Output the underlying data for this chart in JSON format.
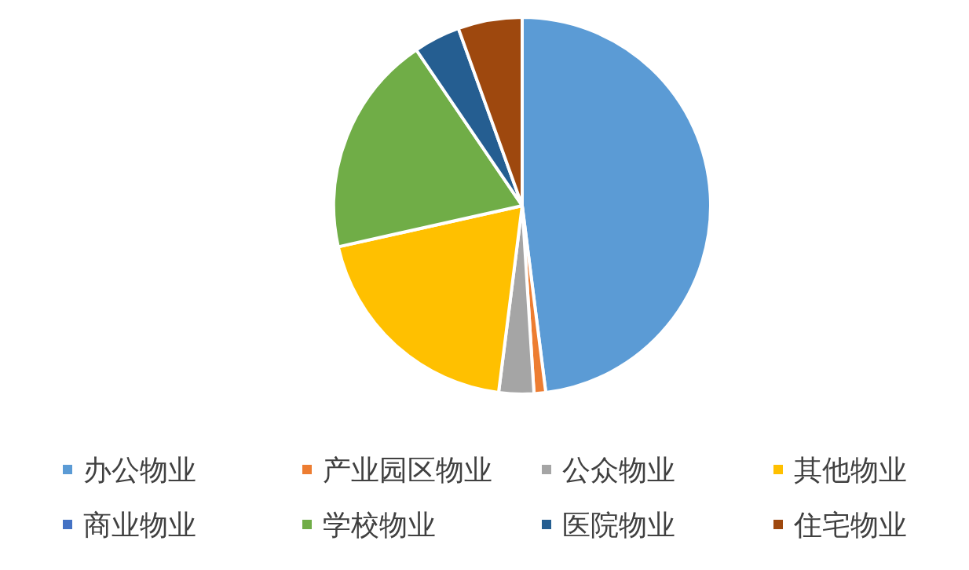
{
  "chart_data": {
    "type": "pie",
    "categories": [
      "办公物业",
      "产业园区物业",
      "公众物业",
      "其他物业",
      "商业物业",
      "学校物业",
      "医院物业",
      "住宅物业"
    ],
    "values": [
      48,
      1,
      3,
      19.5,
      0,
      19,
      4,
      5.5
    ],
    "colors": [
      "#5b9bd5",
      "#ed7d31",
      "#a5a5a5",
      "#ffc000",
      "#4472c4",
      "#70ad47",
      "#255e91",
      "#9e480e"
    ],
    "legend": "bottom"
  }
}
